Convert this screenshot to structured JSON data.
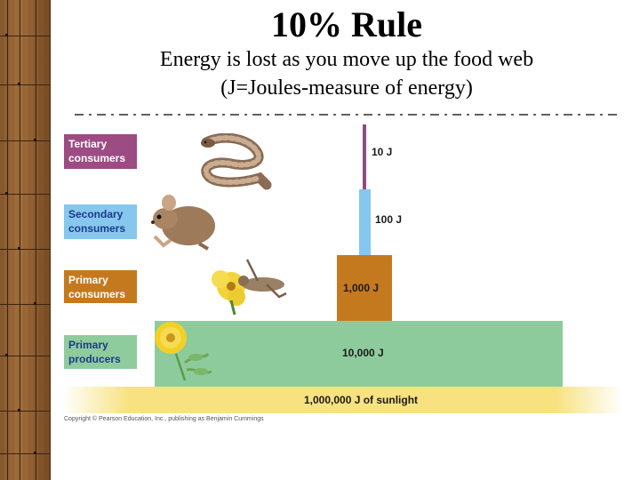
{
  "title": "10% Rule",
  "subtitle_line1": "Energy is lost as you move up the food web",
  "subtitle_line2": "(J=Joules-measure of energy)",
  "levels": [
    {
      "label_line1": "Tertiary",
      "label_line2": "consumers",
      "energy": "10 J",
      "color": "#8e4c7f",
      "organism_icon": "snake-icon"
    },
    {
      "label_line1": "Secondary",
      "label_line2": "consumers",
      "energy": "100 J",
      "color": "#86c7ee",
      "organism_icon": "mouse-icon"
    },
    {
      "label_line1": "Primary",
      "label_line2": "consumers",
      "energy": "1,000 J",
      "color": "#c5791f",
      "organism_icon": "grasshopper-icon"
    },
    {
      "label_line1": "Primary",
      "label_line2": "producers",
      "energy": "10,000 J",
      "color": "#8ecb9c",
      "organism_icon": "flower-icon"
    }
  ],
  "sunlight": {
    "text": "1,000,000 J of sunlight",
    "color": "#f7e27f"
  },
  "copyright": "Copyright © Pearson Education, Inc., publishing as Benjamin Cummings"
}
